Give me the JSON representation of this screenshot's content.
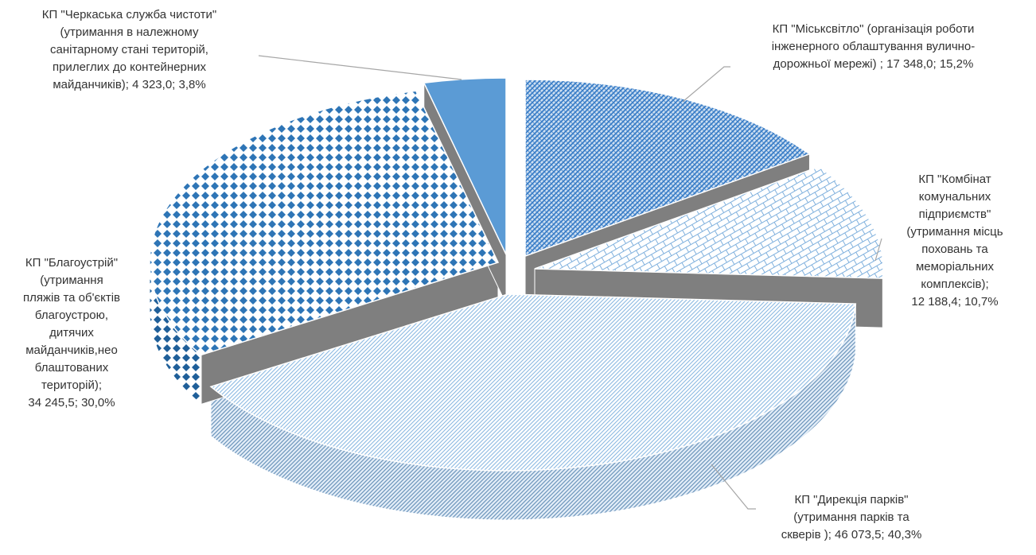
{
  "chart_data": {
    "type": "pie",
    "style": "3d-exploded",
    "title": "",
    "slices": [
      {
        "key": "mis",
        "label": "КП \"Міськсвітло\" (організація роботи\nінженерного облаштування вулично-\nдорожньої мережі) ; 17 348,0; 15,2%",
        "value": 17348.0,
        "percent": 15.2,
        "color": "#3c7fc8",
        "pattern": "diag-dense"
      },
      {
        "key": "komb",
        "label": "КП \"Комбінат\nкомунальних\nпідприємств\"\n(утримання місць\nпоховань та\nмеморіальних\nкомплексів);\n12 188,4; 10,7%",
        "value": 12188.4,
        "percent": 10.7,
        "color": "#5b9bd5",
        "pattern": "brick"
      },
      {
        "key": "dyr",
        "label": "КП \"Дирекція парків\"\n(утримання  парків та\nскверів ); 46 073,5; 40,3%",
        "value": 46073.5,
        "percent": 40.3,
        "color": "#9dc3e6",
        "pattern": "diag-light"
      },
      {
        "key": "blag",
        "label": "КП \"Благоустрій\"\n(утримання\nпляжів та об'єктів\nблагоустрою,\nдитячих\nмайданчиків,нео\nблаштованих\nтериторій);\n34 245,5; 30,0%",
        "value": 34245.5,
        "percent": 30.0,
        "color": "#2e75b6",
        "pattern": "diamond"
      },
      {
        "key": "cherk",
        "label": "КП \"Черкаська служба чистоти\"\n(утримання в належному\nсанітарному стані територій,\nприлеглих до контейнерних\nмайданчиків); 4 323,0; 3,8%",
        "value": 4323.0,
        "percent": 3.8,
        "color": "#5b9bd5",
        "pattern": "solid"
      }
    ]
  }
}
